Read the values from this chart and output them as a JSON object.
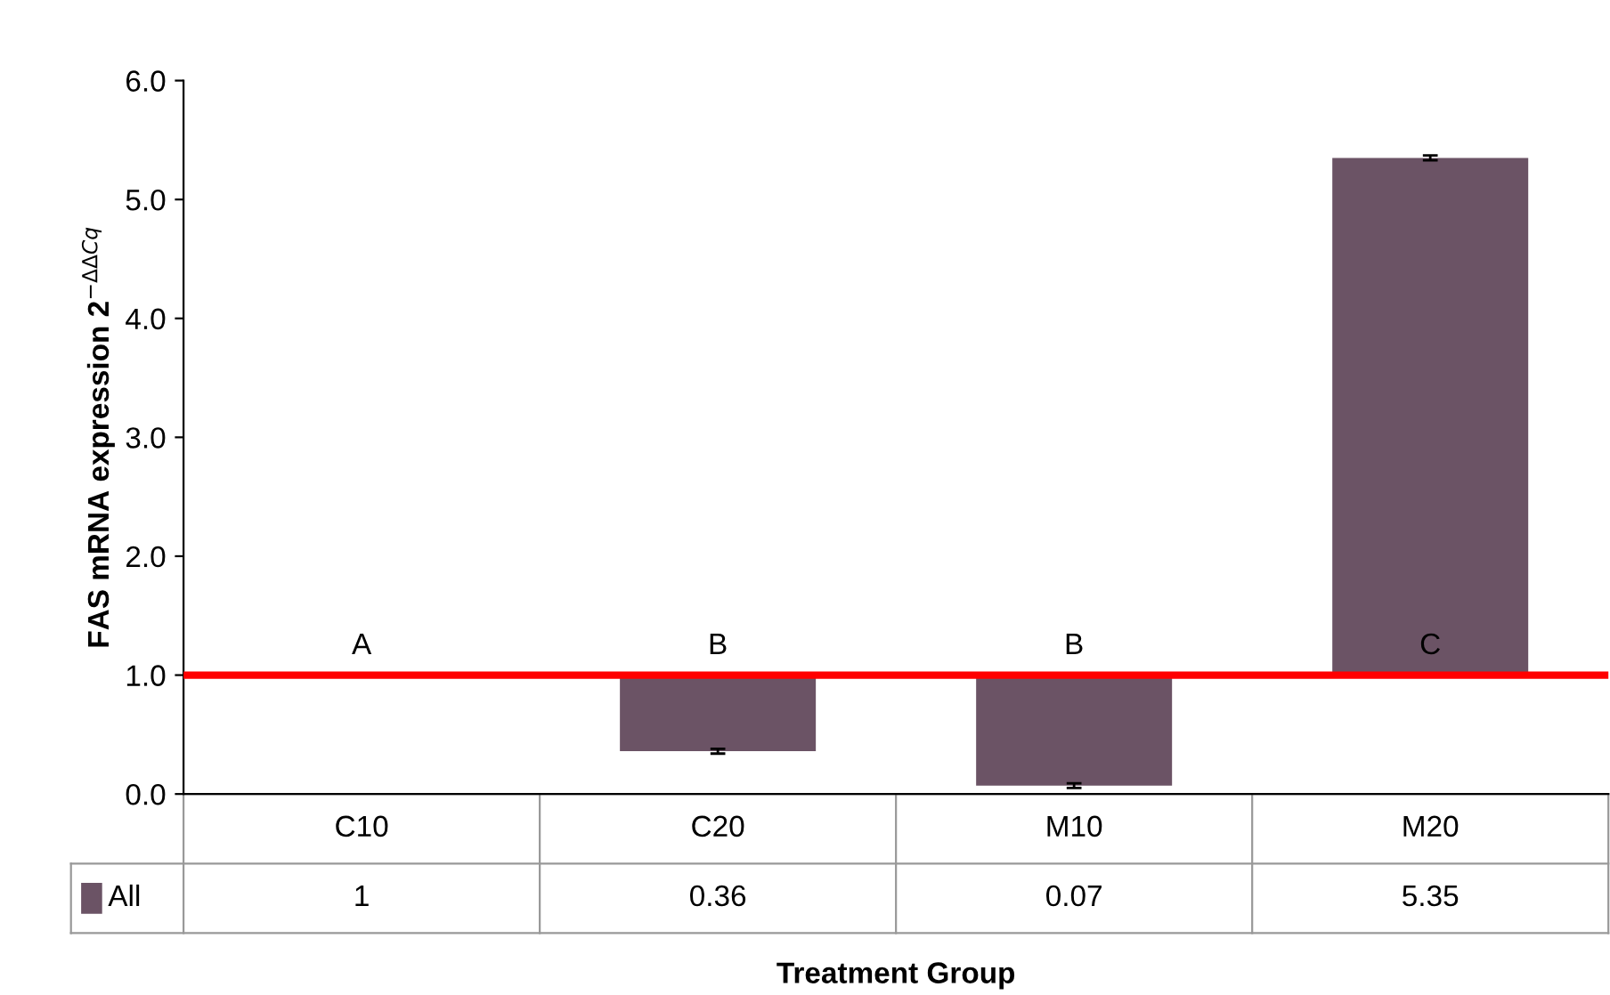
{
  "chart_data": {
    "type": "bar",
    "categories": [
      "C10",
      "C20",
      "M10",
      "M20"
    ],
    "series": [
      {
        "name": "All",
        "color": "#6b5365",
        "values": [
          null,
          -0.64,
          -0.93,
          4.35
        ],
        "base": [
          null,
          1,
          1,
          1
        ],
        "errors": [
          null,
          0.02,
          0.02,
          0.02
        ],
        "value_labels": [
          "1",
          "0.36",
          "0.07",
          "5.35"
        ]
      }
    ],
    "xlabel": "Treatment Group",
    "ylabel": "FAS mRNA expression 2$^{−ΔΔCq}$",
    "ylim": [
      0,
      6
    ],
    "yticks": [
      {
        "value": 0,
        "label": "0.0"
      },
      {
        "value": 1,
        "label": "1.0"
      },
      {
        "value": 2,
        "label": "2.0"
      },
      {
        "value": 3,
        "label": "3.0"
      },
      {
        "value": 4,
        "label": "4.0"
      },
      {
        "value": 5,
        "label": "5.0"
      },
      {
        "value": 6,
        "label": "6.0"
      }
    ],
    "ref_lines": [
      {
        "axis": "y",
        "value": 1,
        "color": "#ff0000"
      }
    ],
    "annotations": [
      "A",
      "B",
      "B",
      "C"
    ],
    "grid": false
  }
}
